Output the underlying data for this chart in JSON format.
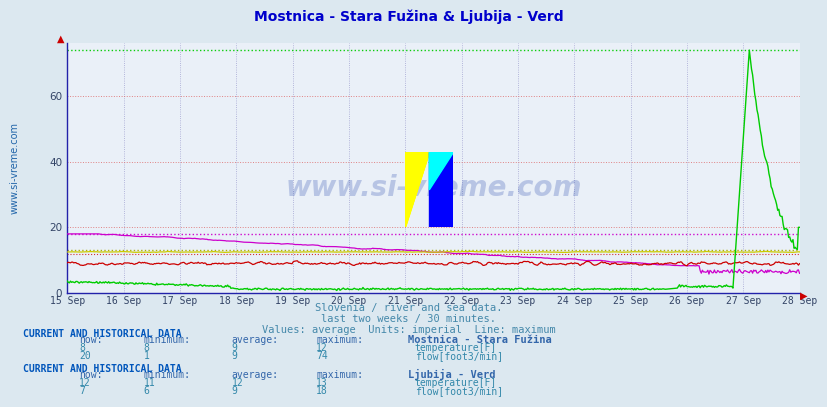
{
  "title": "Mostnica - Stara Fužina & Ljubija - Verd",
  "title_color": "#0000cc",
  "title_fontsize": 10,
  "background_color": "#dce8f0",
  "plot_bg_color": "#eaf0f8",
  "xlabel_dates": [
    "15 Sep",
    "16 Sep",
    "17 Sep",
    "18 Sep",
    "19 Sep",
    "20 Sep",
    "21 Sep",
    "22 Sep",
    "23 Sep",
    "24 Sep",
    "25 Sep",
    "26 Sep",
    "27 Sep",
    "28 Sep"
  ],
  "ylim": [
    0,
    76
  ],
  "yticks": [
    0,
    20,
    40,
    60
  ],
  "grid_color_v": "#9999cc",
  "grid_color_h": "#dd6666",
  "subtitle1": "Slovenia / river and sea data.",
  "subtitle2": "last two weeks / 30 minutes.",
  "subtitle3": "Values: average  Units: imperial  Line: maximum",
  "subtitle_color": "#4488aa",
  "watermark": "www.si-vreme.com",
  "watermark_color": "#2244aa",
  "watermark_alpha": 0.25,
  "ylabel_text": "www.si-vreme.com",
  "ylabel_color": "#2266aa",
  "ylabel_fontsize": 7,
  "colors": {
    "stara_temp": "#cc0000",
    "stara_flow": "#00cc00",
    "ljubija_temp": "#cccc00",
    "ljubija_flow": "#cc00cc"
  },
  "stara_temp_max": 12,
  "stara_flow_max": 74,
  "ljubija_temp_max": 13,
  "ljubija_flow_max": 18,
  "axis_color": "#2222aa",
  "tick_color": "#334466",
  "n_points": 672
}
